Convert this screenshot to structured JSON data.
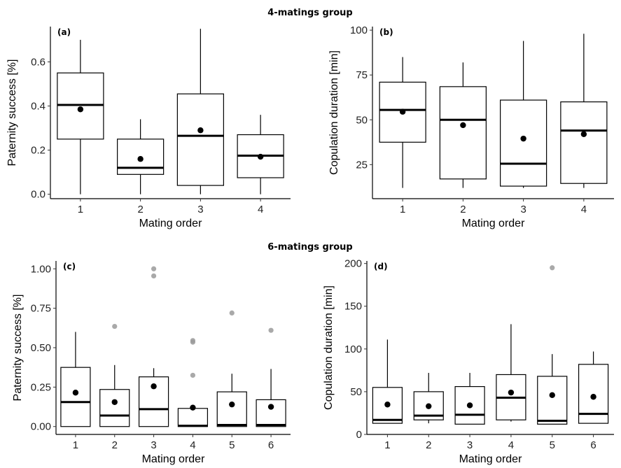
{
  "groups": [
    {
      "title": "4-matings group"
    },
    {
      "title": "6-matings group"
    }
  ],
  "chart_data": [
    {
      "panel": "(a)",
      "type": "box",
      "xlabel": "Mating order",
      "ylabel": "Paternity success [%]",
      "categories": [
        "1",
        "2",
        "3",
        "4"
      ],
      "ylim": [
        -0.02,
        0.76
      ],
      "yticks": [
        0.0,
        0.2,
        0.4,
        0.6
      ],
      "ytick_labels": [
        "0.0",
        "0.2",
        "0.4",
        "0.6"
      ],
      "boxes": [
        {
          "min": 0.0,
          "q1": 0.25,
          "median": 0.405,
          "q3": 0.55,
          "max": 0.7,
          "mean": 0.385,
          "outliers": []
        },
        {
          "min": 0.0,
          "q1": 0.09,
          "median": 0.12,
          "q3": 0.25,
          "max": 0.34,
          "mean": 0.16,
          "outliers": []
        },
        {
          "min": 0.0,
          "q1": 0.04,
          "median": 0.265,
          "q3": 0.455,
          "max": 0.75,
          "mean": 0.29,
          "outliers": []
        },
        {
          "min": 0.0,
          "q1": 0.075,
          "median": 0.175,
          "q3": 0.27,
          "max": 0.36,
          "mean": 0.17,
          "outliers": []
        }
      ]
    },
    {
      "panel": "(b)",
      "type": "box",
      "xlabel": "Mating order",
      "ylabel": "Copulation duration [min]",
      "categories": [
        "1",
        "2",
        "3",
        "4"
      ],
      "ylim": [
        6,
        102
      ],
      "yticks": [
        25,
        50,
        75,
        100
      ],
      "ytick_labels": [
        "25",
        "50",
        "75",
        "100"
      ],
      "boxes": [
        {
          "min": 12,
          "q1": 37.5,
          "median": 55.5,
          "q3": 71,
          "max": 85,
          "mean": 54.5,
          "outliers": []
        },
        {
          "min": 12,
          "q1": 17,
          "median": 50,
          "q3": 68.5,
          "max": 82,
          "mean": 47,
          "outliers": []
        },
        {
          "min": 12,
          "q1": 13,
          "median": 25.5,
          "q3": 61,
          "max": 94,
          "mean": 39.5,
          "outliers": []
        },
        {
          "min": 12,
          "q1": 14.5,
          "median": 44,
          "q3": 60,
          "max": 98,
          "mean": 42,
          "outliers": []
        }
      ]
    },
    {
      "panel": "(c)",
      "type": "box",
      "xlabel": "Mating order",
      "ylabel": "Paternity success [%]",
      "categories": [
        "1",
        "2",
        "3",
        "4",
        "5",
        "6"
      ],
      "ylim": [
        -0.05,
        1.05
      ],
      "yticks": [
        0.0,
        0.25,
        0.5,
        0.75,
        1.0
      ],
      "ytick_labels": [
        "0.00",
        "0.25",
        "0.50",
        "0.75",
        "1.00"
      ],
      "boxes": [
        {
          "min": 0.0,
          "q1": 0.0,
          "median": 0.155,
          "q3": 0.375,
          "max": 0.6,
          "mean": 0.215,
          "outliers": []
        },
        {
          "min": 0.0,
          "q1": 0.0,
          "median": 0.07,
          "q3": 0.235,
          "max": 0.39,
          "mean": 0.155,
          "outliers": [
            0.635
          ]
        },
        {
          "min": 0.0,
          "q1": 0.0,
          "median": 0.11,
          "q3": 0.315,
          "max": 0.37,
          "mean": 0.255,
          "outliers": [
            0.955,
            1.0
          ]
        },
        {
          "min": 0.0,
          "q1": 0.0,
          "median": 0.005,
          "q3": 0.115,
          "max": 0.115,
          "mean": 0.12,
          "outliers": [
            0.325,
            0.535,
            0.545
          ]
        },
        {
          "min": 0.0,
          "q1": 0.0,
          "median": 0.01,
          "q3": 0.22,
          "max": 0.335,
          "mean": 0.14,
          "outliers": [
            0.72
          ]
        },
        {
          "min": 0.0,
          "q1": 0.0,
          "median": 0.01,
          "q3": 0.17,
          "max": 0.365,
          "mean": 0.125,
          "outliers": [
            0.61
          ]
        }
      ]
    },
    {
      "panel": "(d)",
      "type": "box",
      "xlabel": "Mating order",
      "ylabel": "Copulation duration [min]",
      "categories": [
        "1",
        "2",
        "3",
        "4",
        "5",
        "6"
      ],
      "ylim": [
        0,
        203
      ],
      "yticks": [
        0,
        50,
        100,
        150,
        200
      ],
      "ytick_labels": [
        "0",
        "50",
        "100",
        "150",
        "200"
      ],
      "boxes": [
        {
          "min": 13,
          "q1": 13,
          "median": 17,
          "q3": 55,
          "max": 111,
          "mean": 35,
          "outliers": []
        },
        {
          "min": 13,
          "q1": 17,
          "median": 22,
          "q3": 50,
          "max": 72,
          "mean": 33,
          "outliers": []
        },
        {
          "min": 12,
          "q1": 12,
          "median": 23,
          "q3": 56,
          "max": 72,
          "mean": 34,
          "outliers": []
        },
        {
          "min": 15,
          "q1": 17,
          "median": 43,
          "q3": 70,
          "max": 129,
          "mean": 49,
          "outliers": []
        },
        {
          "min": 12,
          "q1": 12,
          "median": 16,
          "q3": 68,
          "max": 94,
          "mean": 46,
          "outliers": [
            195
          ]
        },
        {
          "min": 13,
          "q1": 13,
          "median": 24,
          "q3": 82,
          "max": 97,
          "mean": 44,
          "outliers": []
        }
      ]
    }
  ]
}
